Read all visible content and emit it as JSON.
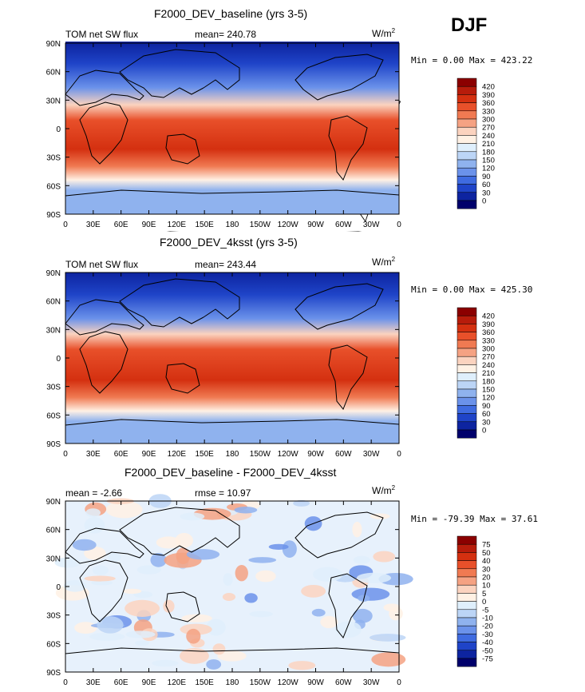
{
  "season": "DJF",
  "chart_data": [
    {
      "type": "heatmap",
      "title": "F2000_DEV_baseline (yrs 3-5)",
      "left_label": "TOM net SW flux",
      "stat_text": "mean= 240.78",
      "units_base": "W/m",
      "units_exp": "2",
      "minmax": "Min =    0.00 Max = 423.22",
      "lat_ticks": [
        "90N",
        "60N",
        "30N",
        "0",
        "30S",
        "60S",
        "90S"
      ],
      "lon_ticks": [
        "0",
        "30E",
        "60E",
        "90E",
        "120E",
        "150E",
        "180",
        "150W",
        "120W",
        "90W",
        "60W",
        "30W",
        "0"
      ],
      "levels": [
        "420",
        "390",
        "360",
        "330",
        "300",
        "270",
        "240",
        "210",
        "180",
        "150",
        "120",
        "90",
        "60",
        "30",
        "0"
      ],
      "colors": [
        "#8b0000",
        "#b71c0b",
        "#d43010",
        "#e8502a",
        "#f07a52",
        "#f5a283",
        "#fbd3bf",
        "#fff1e4",
        "#dfeffc",
        "#bcd5f6",
        "#8fb2ee",
        "#6b92ea",
        "#3f6be0",
        "#1f44c8",
        "#0d24a0",
        "#00006b"
      ]
    },
    {
      "type": "heatmap",
      "title": "F2000_DEV_4ksst (yrs 3-5)",
      "left_label": "TOM net SW flux",
      "stat_text": "mean= 243.44",
      "units_base": "W/m",
      "units_exp": "2",
      "minmax": "Min =    0.00 Max = 425.30",
      "lat_ticks": [
        "90N",
        "60N",
        "30N",
        "0",
        "30S",
        "60S",
        "90S"
      ],
      "lon_ticks": [
        "0",
        "30E",
        "60E",
        "90E",
        "120E",
        "150E",
        "180",
        "150W",
        "120W",
        "90W",
        "60W",
        "30W",
        "0"
      ],
      "levels": [
        "420",
        "390",
        "360",
        "330",
        "300",
        "270",
        "240",
        "210",
        "180",
        "150",
        "120",
        "90",
        "60",
        "30",
        "0"
      ],
      "colors": [
        "#8b0000",
        "#b71c0b",
        "#d43010",
        "#e8502a",
        "#f07a52",
        "#f5a283",
        "#fbd3bf",
        "#fff1e4",
        "#dfeffc",
        "#bcd5f6",
        "#8fb2ee",
        "#6b92ea",
        "#3f6be0",
        "#1f44c8",
        "#0d24a0",
        "#00006b"
      ]
    },
    {
      "type": "heatmap",
      "title": "F2000_DEV_baseline - F2000_DEV_4ksst",
      "left_label": "mean =   -2.66",
      "stat_text": "rmse =   10.97",
      "units_base": "W/m",
      "units_exp": "2",
      "minmax": "Min = -79.39 Max =  37.61",
      "lat_ticks": [
        "90N",
        "60N",
        "30N",
        "0",
        "30S",
        "60S",
        "90S"
      ],
      "lon_ticks": [
        "0",
        "30E",
        "60E",
        "90E",
        "120E",
        "150E",
        "180",
        "150W",
        "120W",
        "90W",
        "60W",
        "30W",
        "0"
      ],
      "levels": [
        "75",
        "50",
        "40",
        "30",
        "20",
        "10",
        "5",
        "0",
        "-5",
        "-10",
        "-20",
        "-30",
        "-40",
        "-50",
        "-75"
      ],
      "colors": [
        "#8b0000",
        "#b71c0b",
        "#d43010",
        "#e8502a",
        "#f07a52",
        "#f5a283",
        "#fbd3bf",
        "#fff1e4",
        "#dfeffc",
        "#bcd5f6",
        "#8fb2ee",
        "#6b92ea",
        "#3f6be0",
        "#1f44c8",
        "#0d24a0",
        "#00006b"
      ]
    }
  ]
}
